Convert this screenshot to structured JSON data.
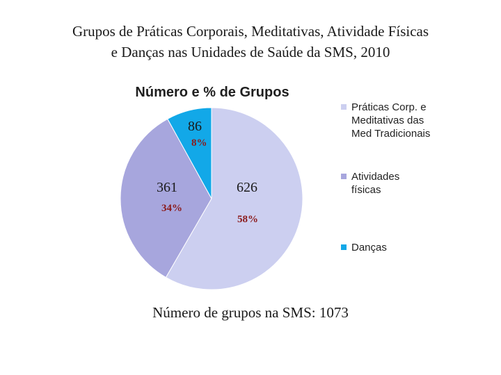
{
  "title": {
    "line1": "Grupos de Práticas Corporais, Meditativas,  Atividade Físicas",
    "line2": "e Danças nas Unidades de Saúde da SMS, 2010"
  },
  "chart_data": {
    "type": "pie",
    "title": "Número e % de Grupos",
    "categories": [
      "Práticas Corp. e Meditativas das Med Tradicionais",
      "Atividades físicas",
      "Danças"
    ],
    "values": [
      626,
      361,
      86
    ],
    "percent_labels": [
      "58%",
      "34%",
      "8%"
    ],
    "colors": [
      "#cccff0",
      "#a7a6dd",
      "#12a8e8"
    ],
    "legend_lines": [
      [
        "Práticas Corp. e",
        "Meditativas das",
        "Med Tradicionais"
      ],
      [
        "Atividades",
        "físicas"
      ],
      [
        "Danças"
      ]
    ],
    "legend_position": "right"
  },
  "footer": "Número de grupos na SMS: 1073"
}
